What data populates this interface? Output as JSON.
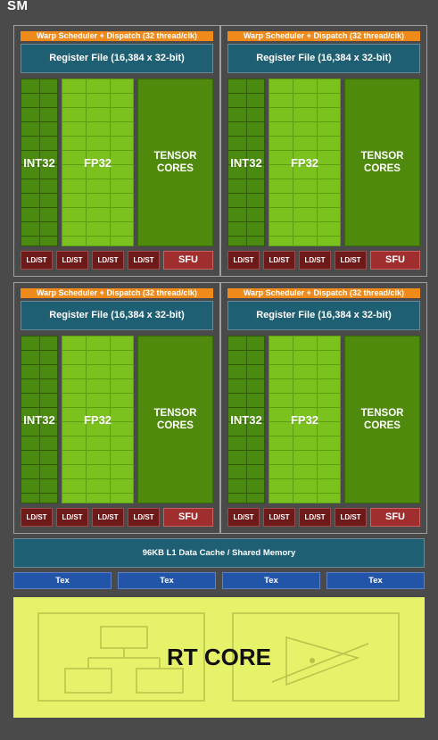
{
  "sm_label": "SM",
  "partition": {
    "warp": "Warp Scheduler + Dispatch (32 thread/clk)",
    "regfile": "Register File (16,384 x 32-bit)",
    "int32": "INT32",
    "fp32": "FP32",
    "tensor_line1": "TENSOR",
    "tensor_line2": "CORES",
    "ldst": "LD/ST",
    "sfu": "SFU"
  },
  "l1_cache": "96KB L1 Data Cache / Shared Memory",
  "tex": [
    "Tex",
    "Tex",
    "Tex",
    "Tex"
  ],
  "rt_core": "RT CORE",
  "colors": {
    "background": "#4a4a4a",
    "warp": "#f08a1a",
    "regfile": "#1f5f73",
    "int32": "#4a8a10",
    "fp32": "#7bc21e",
    "tensor": "#4f8a0c",
    "ldst": "#6e1a1a",
    "sfu": "#a02e2e",
    "tex": "#2255a8",
    "rt_core": "#e6f26a"
  }
}
